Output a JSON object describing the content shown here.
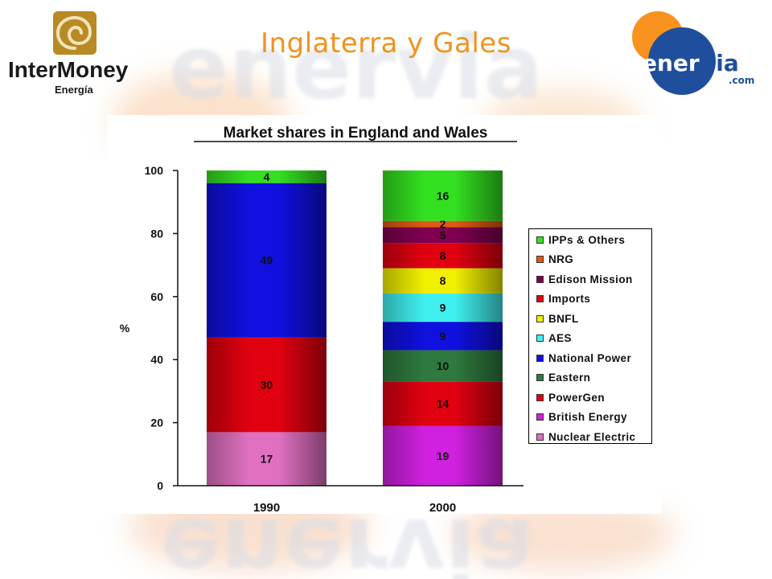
{
  "slide": {
    "title": "Inglaterra y Gales"
  },
  "logos": {
    "left": {
      "name": "InterMoney",
      "sub": "Energía",
      "color": "#1a1a1a",
      "accent": "#b88a24"
    },
    "right": {
      "part1": "ener",
      "part2": "via",
      "suffix": ".com",
      "circle_color": "#1f4e9c",
      "accent": "#f7931e"
    }
  },
  "chart_data": {
    "type": "bar",
    "stacked": true,
    "title": "Market shares in England and Wales",
    "ylabel": "%",
    "ylim": [
      0,
      100
    ],
    "yticks": [
      "0",
      "20",
      "40",
      "60",
      "80",
      "100"
    ],
    "categories": [
      "1990",
      "2000"
    ],
    "series": [
      {
        "name": "Nuclear Electric",
        "color": "#e070c0",
        "values": [
          17,
          null
        ],
        "labels": [
          "17",
          ""
        ]
      },
      {
        "name": "British Energy",
        "color": "#d020e0",
        "values": [
          null,
          19
        ],
        "labels": [
          "",
          "19"
        ]
      },
      {
        "name": "PowerGen",
        "color": "#e00010",
        "values": [
          30,
          14
        ],
        "labels": [
          "30",
          "14"
        ]
      },
      {
        "name": "Eastern",
        "color": "#2e7a3e",
        "values": [
          null,
          10
        ],
        "labels": [
          "",
          "10"
        ]
      },
      {
        "name": "National Power",
        "color": "#1010e0",
        "values": [
          49,
          9
        ],
        "labels": [
          "49",
          "9"
        ]
      },
      {
        "name": "AES",
        "color": "#40f0f0",
        "values": [
          null,
          9
        ],
        "labels": [
          "",
          "9"
        ]
      },
      {
        "name": "BNFL",
        "color": "#f0f000",
        "values": [
          null,
          8
        ],
        "labels": [
          "",
          "8"
        ]
      },
      {
        "name": "Imports",
        "color": "#e00010",
        "values": [
          null,
          8
        ],
        "labels": [
          "",
          "8"
        ]
      },
      {
        "name": "Edison Mission",
        "color": "#800050",
        "values": [
          null,
          5
        ],
        "labels": [
          "",
          "5"
        ]
      },
      {
        "name": "NRG",
        "color": "#e05a10",
        "values": [
          null,
          2
        ],
        "labels": [
          "",
          "2"
        ]
      },
      {
        "name": "IPPs & Others",
        "color": "#33e020",
        "values": [
          4,
          16
        ],
        "labels": [
          "4",
          "16"
        ]
      }
    ],
    "legend": {
      "position": "right",
      "order": [
        "IPPs & Others",
        "NRG",
        "Edison Mission",
        "Imports",
        "BNFL",
        "AES",
        "National Power",
        "Eastern",
        "PowerGen",
        "British Energy",
        "Nuclear Electric"
      ]
    },
    "grid": false
  }
}
